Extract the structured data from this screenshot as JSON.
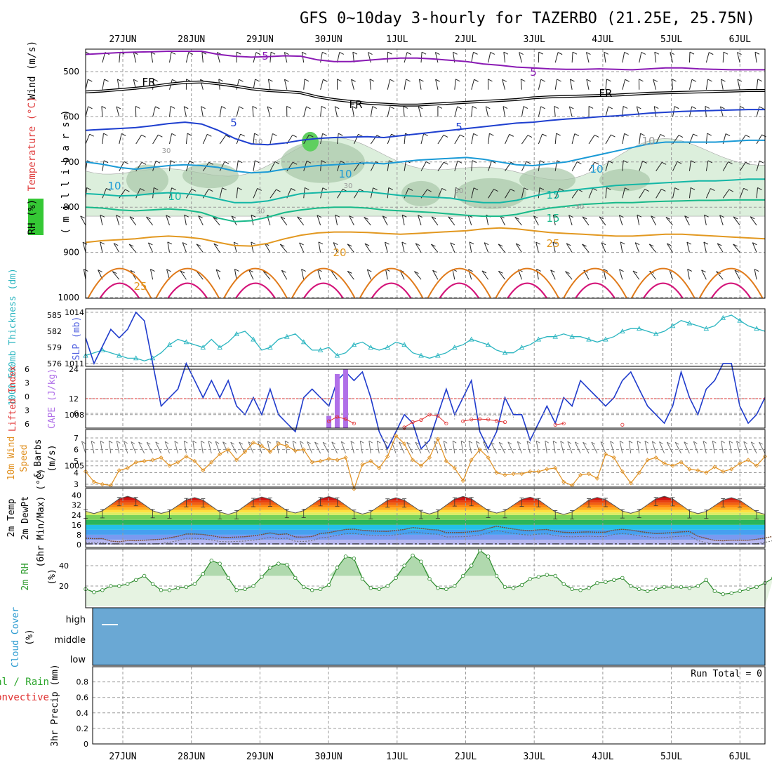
{
  "header": {
    "title": "GFS 0~10day 3-hourly for TAZERBO (21.25E, 25.75N)"
  },
  "dates": [
    "27JUN",
    "28JUN",
    "29JUN",
    "30JUN",
    "1JUL",
    "2JUL",
    "3JUL",
    "4JUL",
    "5JUL",
    "6JUL"
  ],
  "run_total_text": "Run Total = 0",
  "colors": {
    "purple": "#8a1ab4",
    "black": "#000000",
    "blue": "#1e3fcf",
    "lightblue": "#1a9ad6",
    "teal": "#13b7a6",
    "teal2": "#18b98a",
    "orange": "#e29820",
    "darkorange": "#e07a1a",
    "magenta": "#d4157a",
    "rh_fill": "#d9eed9",
    "rh_dark": "#a8c8a8",
    "cloud": "#6aa8d4",
    "slp": "#1f3bcc",
    "thk": "#2ab5c0",
    "cape": "#b070e8",
    "li": "#e03030",
    "wind": "#e09020"
  },
  "chart_data": [
    {
      "type": "contour",
      "panel": "upper-air",
      "ylabel_parts": [
        "Wind (m/s)",
        "Temperature (°C)",
        "RH (%)"
      ],
      "ylabel2": "( m i l l i b a r s )",
      "yticks": [
        500,
        600,
        700,
        800,
        900,
        1000
      ],
      "contour_labels": [
        "5",
        "5",
        "FR",
        "FR",
        "FR",
        "5",
        "5",
        "10",
        "10",
        "10",
        "10",
        "10",
        "15",
        "15",
        "20",
        "25",
        "25",
        "10",
        "30",
        "30",
        "30",
        "30",
        "30"
      ],
      "isotherms": [
        {
          "name": "-5",
          "color": "purple",
          "p": [
            462,
            460,
            458,
            457,
            456,
            455,
            455,
            455,
            462,
            466,
            468,
            467,
            465,
            466,
            474,
            478,
            478,
            475,
            472,
            470,
            470,
            472,
            475,
            478,
            483,
            486,
            490,
            492,
            494,
            495,
            495,
            494,
            495,
            496,
            494,
            492,
            492,
            494,
            495,
            496,
            496,
            496
          ]
        },
        {
          "name": "FR",
          "color": "black",
          "p": [
            545,
            543,
            540,
            537,
            533,
            528,
            524,
            523,
            527,
            532,
            538,
            542,
            544,
            547,
            556,
            562,
            566,
            570,
            572,
            574,
            574,
            572,
            570,
            568,
            566,
            564,
            562,
            558,
            556,
            555,
            554,
            553,
            552,
            550,
            548,
            547,
            546,
            545,
            544,
            543,
            542,
            542
          ]
        },
        {
          "name": "5",
          "color": "blue",
          "p": [
            630,
            628,
            626,
            624,
            620,
            615,
            612,
            616,
            630,
            648,
            660,
            662,
            658,
            652,
            648,
            646,
            645,
            644,
            646,
            642,
            638,
            634,
            630,
            626,
            622,
            618,
            614,
            612,
            608,
            605,
            603,
            600,
            598,
            595,
            592,
            590,
            588,
            587,
            586,
            585,
            584,
            584
          ]
        },
        {
          "name": "10",
          "color": "lightblue",
          "p": [
            700,
            705,
            712,
            716,
            712,
            708,
            706,
            708,
            712,
            720,
            724,
            722,
            716,
            712,
            708,
            706,
            704,
            702,
            704,
            700,
            696,
            694,
            692,
            690,
            694,
            700,
            706,
            708,
            704,
            700,
            692,
            684,
            676,
            668,
            660,
            656,
            656,
            656,
            656,
            654,
            652,
            652
          ]
        },
        {
          "name": "15",
          "color": "teal",
          "p": [
            770,
            772,
            775,
            774,
            770,
            768,
            770,
            774,
            782,
            790,
            790,
            786,
            778,
            770,
            768,
            766,
            765,
            766,
            770,
            774,
            776,
            778,
            780,
            786,
            790,
            790,
            785,
            776,
            768,
            764,
            760,
            756,
            752,
            750,
            748,
            746,
            744,
            742,
            742,
            740,
            738,
            738
          ]
        },
        {
          "name": "20",
          "color": "teal2",
          "p": [
            800,
            802,
            806,
            808,
            806,
            804,
            806,
            812,
            824,
            832,
            830,
            822,
            812,
            806,
            802,
            800,
            800,
            802,
            806,
            808,
            810,
            812,
            815,
            818,
            820,
            820,
            816,
            808,
            802,
            798,
            794,
            792,
            790,
            790,
            788,
            787,
            786,
            785,
            785,
            784,
            784,
            784
          ]
        },
        {
          "name": "25",
          "color": "orange",
          "p": [
            878,
            874,
            872,
            870,
            866,
            864,
            866,
            870,
            878,
            885,
            886,
            880,
            870,
            862,
            857,
            855,
            855,
            856,
            858,
            860,
            858,
            856,
            854,
            852,
            848,
            846,
            848,
            852,
            856,
            858,
            860,
            862,
            864,
            864,
            862,
            860,
            860,
            862,
            864,
            866,
            868,
            870
          ]
        }
      ],
      "warm_domes_c": [
        1,
        3,
        5,
        7,
        9,
        11,
        13,
        15,
        17,
        19
      ],
      "rh_humid_zone": [
        [
          0.1,
          0.5
        ],
        [
          0.6,
          0.9
        ],
        [
          0.75,
          1.0
        ]
      ]
    },
    {
      "type": "line",
      "panel": "slp-thickness",
      "ylabel": "SLP (mb)",
      "ylabel_thk": "1000-500mb Thickness (dm)",
      "yticks_left": [
        576,
        579,
        582,
        585
      ],
      "yticks_right": [
        1005,
        1008,
        1011,
        1014
      ],
      "series": [
        {
          "name": "SLP (mb)",
          "axis": "right",
          "color": "slp",
          "values": [
            1012.5,
            1011.0,
            1012.0,
            1013.0,
            1012.5,
            1013.0,
            1014.0,
            1013.5,
            1011.0,
            1008.5,
            1009.0,
            1009.5,
            1011.0,
            1010.0,
            1009.0,
            1010.0,
            1009.0,
            1010.0,
            1008.5,
            1008.0,
            1009.0,
            1008.0,
            1009.5,
            1008.0,
            1007.5,
            1007.0,
            1009.0,
            1009.5,
            1009.0,
            1008.5,
            1010.0,
            1010.5,
            1010.0,
            1010.5,
            1009.0,
            1007.0,
            1006.0,
            1007.0,
            1008.0,
            1007.5,
            1006.0,
            1006.5,
            1008.0,
            1009.5,
            1008.0,
            1009.0,
            1010.0,
            1007.0,
            1006.0,
            1007.0,
            1009.0,
            1008.0,
            1008.0,
            1006.5,
            1007.5,
            1008.5,
            1007.5,
            1009.0,
            1008.5,
            1010.0,
            1009.5,
            1009.0,
            1008.5,
            1009.0,
            1010.0,
            1010.5,
            1009.5,
            1008.5,
            1008.0,
            1007.5,
            1008.5,
            1010.5,
            1009.0,
            1008.0,
            1009.5,
            1010.0,
            1011.0,
            1011.0,
            1008.5,
            1007.5,
            1008.0,
            1009.0
          ]
        },
        {
          "name": "1000-500mb Thickness (dm)",
          "axis": "left",
          "color": "thk",
          "values": [
            577.5,
            578.0,
            578.5,
            578.0,
            577.5,
            577.0,
            577.0,
            576.5,
            577.0,
            578.0,
            579.5,
            580.5,
            580.0,
            579.5,
            579.0,
            580.5,
            579.0,
            580.0,
            581.5,
            582.0,
            580.5,
            578.5,
            579.0,
            580.5,
            581.0,
            581.5,
            580.0,
            578.5,
            578.5,
            579.0,
            577.5,
            578.0,
            579.5,
            580.0,
            579.0,
            578.5,
            579.0,
            580.0,
            579.5,
            578.0,
            577.5,
            577.0,
            577.5,
            578.0,
            579.0,
            579.5,
            580.5,
            580.0,
            579.5,
            578.5,
            578.0,
            578.0,
            579.0,
            579.5,
            580.5,
            581.0,
            581.0,
            581.5,
            581.0,
            581.0,
            580.5,
            580.0,
            580.5,
            581.0,
            582.0,
            582.5,
            582.5,
            582.0,
            581.5,
            582.0,
            583.0,
            584.0,
            583.5,
            583.0,
            582.5,
            583.0,
            584.5,
            585.0,
            584.0,
            583.0,
            582.5,
            582.0
          ]
        }
      ]
    },
    {
      "type": "bar",
      "panel": "cape-li",
      "ylabel": "CAPE (J/kg)",
      "ylabel2": "Lifted Index",
      "yticks_left": [
        -6,
        -3,
        0,
        3,
        6
      ],
      "yticks_left_labels": [
        "6",
        "3",
        "0",
        "3",
        "6"
      ],
      "yticks_right": [
        6,
        12,
        24
      ],
      "cape_bars": [
        {
          "i": 29,
          "value": 5
        },
        {
          "i": 30,
          "value": 22
        },
        {
          "i": 31,
          "value": 24
        }
      ],
      "li_values": [
        {
          "i": 29,
          "value": 4.8
        },
        {
          "i": 30,
          "value": 3.8
        },
        {
          "i": 31,
          "value": 4.3
        },
        {
          "i": 32,
          "value": 5.3
        },
        {
          "i": 38,
          "value": 6.2
        },
        {
          "i": 39,
          "value": 5.0
        },
        {
          "i": 40,
          "value": 4.5
        },
        {
          "i": 41,
          "value": 3.3
        },
        {
          "i": 42,
          "value": 3.6
        },
        {
          "i": 43,
          "value": 5.3
        },
        {
          "i": 45,
          "value": 4.8
        },
        {
          "i": 46,
          "value": 4.4
        },
        {
          "i": 47,
          "value": 4.3
        },
        {
          "i": 48,
          "value": 4.4
        },
        {
          "i": 49,
          "value": 4.7
        },
        {
          "i": 50,
          "value": 5.0
        },
        {
          "i": 56,
          "value": 5.6
        },
        {
          "i": 57,
          "value": 5.3
        },
        {
          "i": 64,
          "value": 5.6
        }
      ]
    },
    {
      "type": "line",
      "panel": "wind10m",
      "ylabel": "10m Wind Speed & Barbs (m/s)",
      "yticks": [
        3,
        4,
        5,
        6,
        7
      ],
      "values": [
        4.1,
        3.2,
        3.0,
        2.9,
        4.2,
        4.4,
        4.9,
        5.0,
        5.1,
        5.3,
        4.6,
        4.9,
        5.4,
        5.0,
        4.2,
        4.9,
        5.6,
        6.0,
        5.1,
        5.8,
        6.6,
        6.3,
        5.8,
        6.5,
        6.3,
        5.9,
        6.0,
        4.9,
        5.0,
        5.2,
        5.1,
        5.3,
        2.6,
        4.7,
        5.0,
        4.4,
        5.4,
        7.2,
        6.5,
        5.1,
        4.6,
        5.3,
        6.9,
        5.0,
        4.4,
        3.3,
        5.1,
        6.0,
        5.3,
        4.0,
        3.8,
        3.9,
        3.9,
        4.1,
        4.1,
        4.3,
        4.4,
        3.2,
        2.9,
        3.8,
        3.9,
        3.5,
        5.6,
        5.3,
        4.1,
        3.1,
        4.0,
        5.1,
        5.3,
        4.8,
        4.6,
        4.9,
        4.3,
        4.2,
        4.0,
        4.5,
        4.1,
        4.3,
        4.8,
        5.1,
        4.6,
        5.4
      ]
    },
    {
      "type": "area",
      "panel": "temperature",
      "ylabel": "2m Temp",
      "ylabel2": "2m DewPt",
      "ylabel3": "(6hr Min/Max) (°C)",
      "yticks": [
        0,
        8,
        16,
        24,
        32,
        40
      ],
      "temp_min": 25,
      "temp_max": 38.5,
      "dewpt": [
        5.2,
        4.8,
        4.9,
        2.9,
        2.3,
        3.3,
        3.2,
        3.5,
        4.0,
        4.3,
        5.5,
        6.7,
        8.6,
        8.6,
        8.2,
        7.3,
        6.0,
        5.8,
        6.1,
        6.4,
        7.1,
        8.1,
        9.5,
        8.2,
        8.7,
        6.2,
        6.1,
        6.6,
        9.0,
        9.7,
        11.0,
        12.3,
        12.5,
        11.6,
        11.1,
        10.8,
        10.7,
        11.5,
        12.3,
        13.8,
        13.1,
        12.2,
        11.9,
        9.7,
        9.8,
        9.9,
        10.4,
        11.2,
        13.1,
        14.9,
        13.7,
        12.6,
        11.7,
        11.2,
        12.0,
        12.2,
        10.8,
        10.0,
        9.8,
        10.1,
        10.3,
        10.0,
        10.1,
        11.8,
        12.4,
        11.8,
        10.6,
        9.8,
        8.9,
        9.3,
        9.8,
        10.3,
        10.6,
        6.8,
        5.0,
        3.4,
        3.1,
        3.5,
        3.5,
        3.5,
        4.3,
        5.3,
        6.8
      ],
      "dewpt_secondary_offset": -3.5
    },
    {
      "type": "area",
      "panel": "rh2m",
      "ylabel": "2m RH",
      "ylabel2": "(%)",
      "yticks": [
        20,
        40
      ],
      "values": [
        17,
        14,
        16,
        20,
        20,
        22,
        26,
        30,
        22,
        16,
        16,
        18,
        19,
        22,
        32,
        45,
        42,
        28,
        16,
        17,
        20,
        29,
        38,
        42,
        41,
        28,
        19,
        16,
        17,
        21,
        38,
        49,
        47,
        27,
        18,
        17,
        20,
        28,
        40,
        50,
        44,
        27,
        18,
        17,
        20,
        30,
        40,
        55,
        49,
        30,
        19,
        18,
        21,
        27,
        29,
        31,
        30,
        22,
        17,
        16,
        18,
        23,
        24,
        26,
        28,
        20,
        17,
        15,
        17,
        19,
        19,
        19,
        18,
        20,
        26,
        15,
        12,
        13,
        15,
        17,
        19,
        23,
        28
      ]
    },
    {
      "type": "area",
      "panel": "cloud",
      "ylabel": "Cloud Cover (%)",
      "levels": [
        "high",
        "middle",
        "low"
      ]
    },
    {
      "type": "bar",
      "panel": "precip",
      "ylabel": "3hr Precip (mm)",
      "ylabel_left": "Total / Rain",
      "ylabel_left2": "Convective",
      "yticks": [
        0,
        0.2,
        0.4,
        0.6,
        0.8
      ],
      "ytick_labels": [
        "0",
        "0.2",
        "0.4",
        "0.6",
        "0.8"
      ],
      "values": []
    }
  ]
}
